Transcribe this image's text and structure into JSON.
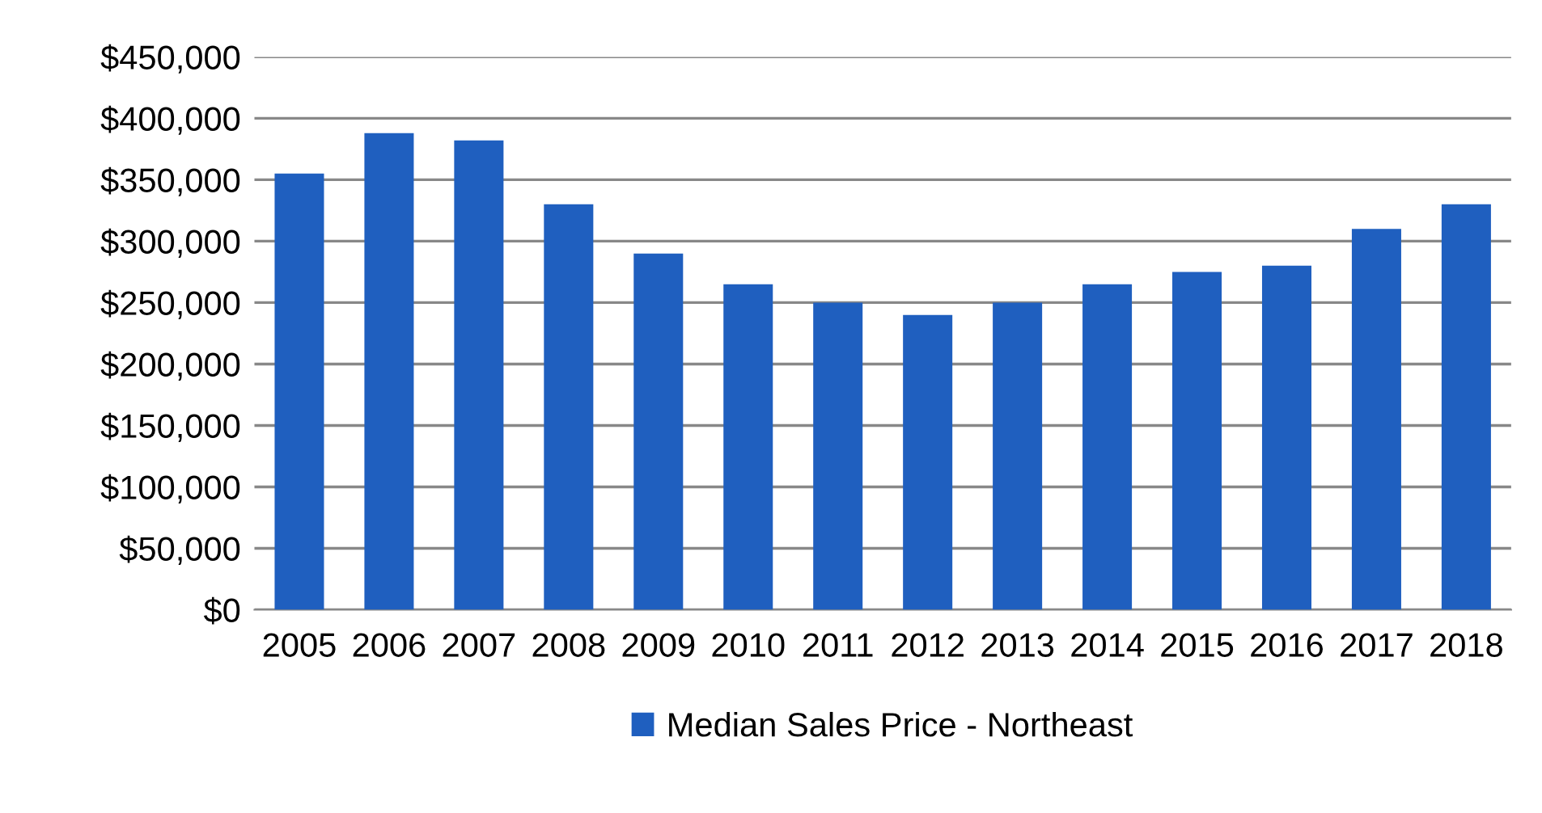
{
  "chart_data": {
    "type": "bar",
    "categories": [
      "2005",
      "2006",
      "2007",
      "2008",
      "2009",
      "2010",
      "2011",
      "2012",
      "2013",
      "2014",
      "2015",
      "2016",
      "2017",
      "2018"
    ],
    "series": [
      {
        "name": "Median Sales Price - Northeast",
        "color": "#1f5fbf",
        "values": [
          355000,
          388000,
          382000,
          330000,
          290000,
          265000,
          250000,
          240000,
          250000,
          265000,
          275000,
          280000,
          310000,
          330000
        ]
      }
    ],
    "ylim": [
      0,
      450000
    ],
    "yticks": [
      {
        "value": 0,
        "label": "$0"
      },
      {
        "value": 50000,
        "label": "$50,000"
      },
      {
        "value": 100000,
        "label": "$100,000"
      },
      {
        "value": 150000,
        "label": "$150,000"
      },
      {
        "value": 200000,
        "label": "$200,000"
      },
      {
        "value": 250000,
        "label": "$250,000"
      },
      {
        "value": 300000,
        "label": "$300,000"
      },
      {
        "value": 350000,
        "label": "$350,000"
      },
      {
        "value": 400000,
        "label": "$400,000"
      },
      {
        "value": 450000,
        "label": "$450,000"
      }
    ],
    "grid": "y",
    "legend": "bottom"
  }
}
